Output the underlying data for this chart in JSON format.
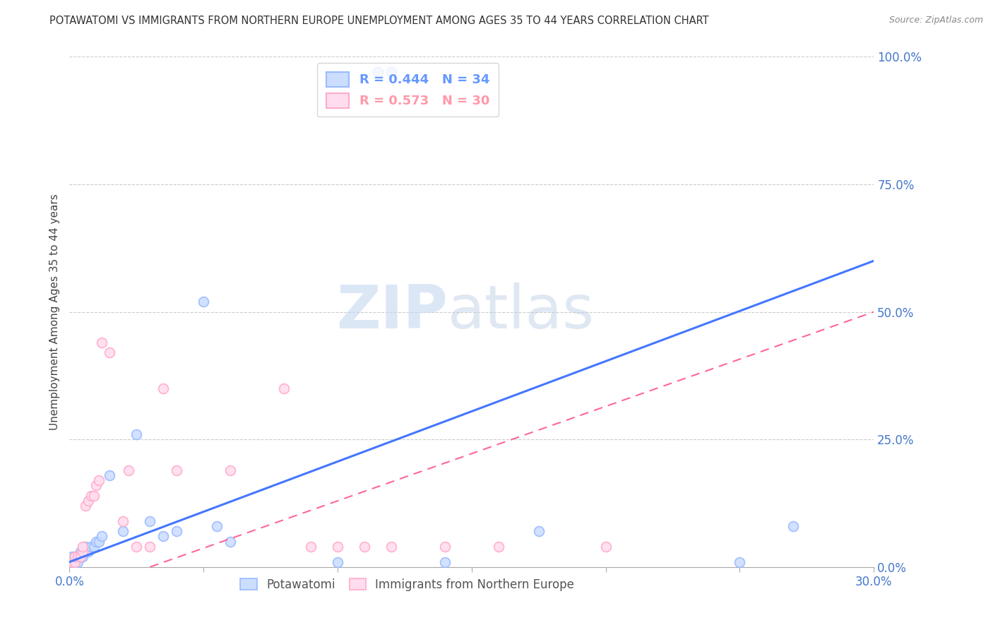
{
  "title": "POTAWATOMI VS IMMIGRANTS FROM NORTHERN EUROPE UNEMPLOYMENT AMONG AGES 35 TO 44 YEARS CORRELATION CHART",
  "source": "Source: ZipAtlas.com",
  "ylabel_label": "Unemployment Among Ages 35 to 44 years",
  "xlim": [
    0.0,
    0.3
  ],
  "ylim": [
    0.0,
    1.0
  ],
  "ytick_vals": [
    0.0,
    0.25,
    0.5,
    0.75,
    1.0
  ],
  "xtick_vals": [
    0.0,
    0.05,
    0.1,
    0.15,
    0.2,
    0.25,
    0.3
  ],
  "xtick_show_labels": [
    true,
    false,
    false,
    false,
    false,
    false,
    true
  ],
  "legend_entries": [
    {
      "label": "R = 0.444   N = 34",
      "color": "#6699ff"
    },
    {
      "label": "R = 0.573   N = 30",
      "color": "#ff99aa"
    }
  ],
  "legend_labels": [
    "Potawatomi",
    "Immigrants from Northern Europe"
  ],
  "blue_scatter": [
    [
      0.001,
      0.01
    ],
    [
      0.001,
      0.02
    ],
    [
      0.002,
      0.01
    ],
    [
      0.002,
      0.02
    ],
    [
      0.003,
      0.01
    ],
    [
      0.003,
      0.02
    ],
    [
      0.004,
      0.02
    ],
    [
      0.004,
      0.03
    ],
    [
      0.005,
      0.02
    ],
    [
      0.005,
      0.03
    ],
    [
      0.006,
      0.03
    ],
    [
      0.006,
      0.04
    ],
    [
      0.007,
      0.03
    ],
    [
      0.008,
      0.04
    ],
    [
      0.009,
      0.04
    ],
    [
      0.01,
      0.05
    ],
    [
      0.011,
      0.05
    ],
    [
      0.012,
      0.06
    ],
    [
      0.015,
      0.18
    ],
    [
      0.02,
      0.07
    ],
    [
      0.025,
      0.26
    ],
    [
      0.03,
      0.09
    ],
    [
      0.035,
      0.06
    ],
    [
      0.04,
      0.07
    ],
    [
      0.115,
      0.97
    ],
    [
      0.12,
      0.97
    ],
    [
      0.05,
      0.52
    ],
    [
      0.055,
      0.08
    ],
    [
      0.06,
      0.05
    ],
    [
      0.1,
      0.01
    ],
    [
      0.14,
      0.01
    ],
    [
      0.175,
      0.07
    ],
    [
      0.25,
      0.01
    ],
    [
      0.27,
      0.08
    ]
  ],
  "pink_scatter": [
    [
      0.001,
      0.01
    ],
    [
      0.002,
      0.01
    ],
    [
      0.002,
      0.02
    ],
    [
      0.003,
      0.02
    ],
    [
      0.004,
      0.02
    ],
    [
      0.005,
      0.03
    ],
    [
      0.005,
      0.04
    ],
    [
      0.006,
      0.12
    ],
    [
      0.007,
      0.13
    ],
    [
      0.008,
      0.14
    ],
    [
      0.009,
      0.14
    ],
    [
      0.01,
      0.16
    ],
    [
      0.011,
      0.17
    ],
    [
      0.012,
      0.44
    ],
    [
      0.015,
      0.42
    ],
    [
      0.02,
      0.09
    ],
    [
      0.022,
      0.19
    ],
    [
      0.025,
      0.04
    ],
    [
      0.03,
      0.04
    ],
    [
      0.035,
      0.35
    ],
    [
      0.04,
      0.19
    ],
    [
      0.06,
      0.19
    ],
    [
      0.08,
      0.35
    ],
    [
      0.09,
      0.04
    ],
    [
      0.1,
      0.04
    ],
    [
      0.11,
      0.04
    ],
    [
      0.12,
      0.04
    ],
    [
      0.14,
      0.04
    ],
    [
      0.16,
      0.04
    ],
    [
      0.2,
      0.04
    ]
  ],
  "blue_line": {
    "x": [
      0.0,
      0.3
    ],
    "y": [
      0.01,
      0.6
    ]
  },
  "pink_line": {
    "x": [
      0.03,
      0.3
    ],
    "y": [
      0.0,
      0.5
    ]
  },
  "scatter_size": 100,
  "blue_color": "#99bbff",
  "pink_color": "#ffaacc",
  "blue_fill_color": "#ccdeff",
  "pink_fill_color": "#ffddee",
  "blue_line_color": "#4477ff",
  "pink_line_color": "#ff6699",
  "watermark_text": "ZIPatlas",
  "background_color": "#ffffff",
  "grid_color": "#cccccc"
}
